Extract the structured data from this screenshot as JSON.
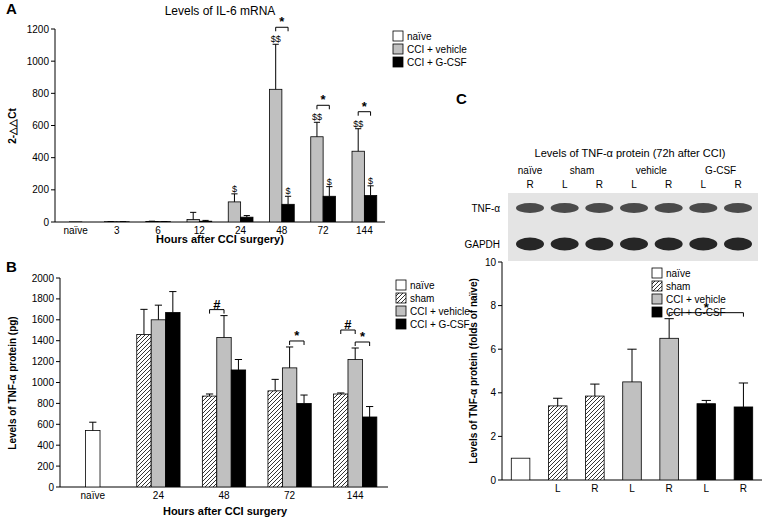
{
  "chart_data": [
    {
      "panel": "A",
      "type": "bar",
      "title": "Levels  of IL-6 mRNA",
      "x_label": "Hours after CCI surgery)",
      "y_label": "2-△△Ct",
      "categories": [
        "naïve",
        "3",
        "6",
        "12",
        "24",
        "48",
        "72",
        "144"
      ],
      "series": [
        {
          "name": "naïve",
          "color": "#ffffff",
          "values": [
            1,
            null,
            null,
            null,
            null,
            null,
            null,
            null
          ],
          "errors": [
            null,
            null,
            null,
            null,
            null,
            null,
            null,
            null
          ]
        },
        {
          "name": "CCI + vehicle",
          "color": "#c0c0c0",
          "values": [
            null,
            2,
            3,
            15,
            125,
            825,
            530,
            440
          ],
          "errors": [
            null,
            1,
            2,
            45,
            50,
            280,
            90,
            140
          ],
          "notes": [
            null,
            null,
            null,
            null,
            "$",
            "$$",
            "$$",
            "$$"
          ]
        },
        {
          "name": "CCI + G-CSF",
          "color": "#000000",
          "values": [
            null,
            1,
            2,
            5,
            30,
            110,
            160,
            165
          ],
          "errors": [
            null,
            1,
            1,
            5,
            10,
            50,
            60,
            60
          ],
          "notes": [
            null,
            null,
            null,
            null,
            null,
            "$",
            "$",
            "$"
          ]
        }
      ],
      "ylim": [
        0,
        1200
      ],
      "yticks": [
        0,
        200,
        400,
        600,
        800,
        1000,
        1200
      ],
      "grid": false,
      "legend": "right",
      "annotations": [
        {
          "text": "*",
          "from": [
            5,
            1
          ],
          "to": [
            5,
            2
          ]
        },
        {
          "text": "*",
          "from": [
            6,
            1
          ],
          "to": [
            6,
            2
          ]
        },
        {
          "text": "*",
          "from": [
            7,
            1
          ],
          "to": [
            7,
            2
          ]
        }
      ]
    },
    {
      "panel": "B",
      "type": "bar",
      "x_label": "Hours after CCI surgery",
      "y_label": "Levels of TNF-α protein (pg)",
      "categories": [
        "naïve",
        "24",
        "48",
        "72",
        "144"
      ],
      "series": [
        {
          "name": "naïve",
          "color": "#ffffff",
          "values": [
            540,
            null,
            null,
            null,
            null
          ],
          "errors": [
            80,
            null,
            null,
            null,
            null
          ]
        },
        {
          "name": "sham",
          "color": "#ffffff",
          "line_style": "hatched",
          "values": [
            null,
            1460,
            870,
            920,
            890
          ],
          "errors": [
            null,
            240,
            20,
            110,
            10
          ]
        },
        {
          "name": "CCI + vehicle",
          "color": "#c0c0c0",
          "values": [
            null,
            1600,
            1430,
            1140,
            1220
          ],
          "errors": [
            null,
            140,
            210,
            200,
            110
          ]
        },
        {
          "name": "CCI + G-CSF",
          "color": "#000000",
          "values": [
            null,
            1670,
            1120,
            800,
            670
          ],
          "errors": [
            null,
            200,
            100,
            80,
            100
          ]
        }
      ],
      "ylim": [
        0,
        2000
      ],
      "yticks": [
        0,
        200,
        400,
        600,
        800,
        1000,
        1200,
        1400,
        1600,
        1800,
        2000
      ],
      "grid": false,
      "legend": "right",
      "annotations": [
        {
          "text": "#",
          "from": [
            2,
            1
          ],
          "to": [
            2,
            2
          ]
        },
        {
          "text": "*",
          "from": [
            3,
            2
          ],
          "to": [
            3,
            3
          ]
        },
        {
          "text": "*",
          "from": [
            4,
            2
          ],
          "to": [
            4,
            3
          ]
        },
        {
          "text": "#",
          "from": [
            4,
            1
          ],
          "to": [
            4,
            2
          ]
        }
      ]
    },
    {
      "panel": "C",
      "type": "bar",
      "y_label": "Levels of TNF-α protein (folds of naïve)",
      "categories": [
        null,
        "L",
        "R",
        "L",
        "R",
        "L",
        "R"
      ],
      "series": [
        {
          "name": "naïve",
          "color": "#ffffff",
          "values": [
            1,
            null,
            null,
            null,
            null,
            null,
            null
          ],
          "errors": [
            null,
            null,
            null,
            null,
            null,
            null,
            null
          ]
        },
        {
          "name": "sham",
          "color": "#ffffff",
          "line_style": "hatched",
          "values": [
            null,
            3.4,
            3.85,
            null,
            null,
            null,
            null
          ],
          "errors": [
            null,
            0.35,
            0.55,
            null,
            null,
            null,
            null
          ]
        },
        {
          "name": "CCI + vehicle",
          "color": "#c0c0c0",
          "values": [
            null,
            null,
            null,
            4.5,
            6.5,
            null,
            null
          ],
          "errors": [
            null,
            null,
            null,
            1.5,
            0.9,
            null,
            null
          ]
        },
        {
          "name": "CCI + G-CSF",
          "color": "#000000",
          "values": [
            null,
            null,
            null,
            null,
            null,
            3.5,
            3.35
          ],
          "errors": [
            null,
            null,
            null,
            null,
            null,
            0.15,
            1.1
          ]
        }
      ],
      "ylim": [
        0,
        10
      ],
      "yticks": [
        0,
        2,
        4,
        6,
        8,
        10
      ],
      "grid": false,
      "legend": "top-right",
      "annotations": [
        {
          "text": "*",
          "from": [
            4,
            2
          ],
          "to": [
            6,
            3
          ]
        }
      ]
    }
  ],
  "blot": {
    "title": "Levels of TNF-α protein (72h after CCI)",
    "groups": [
      {
        "name": "naïve",
        "lanes": [
          "R"
        ]
      },
      {
        "name": "sham",
        "lanes": [
          "L",
          "R"
        ]
      },
      {
        "name": "vehicle",
        "lanes": [
          "L",
          "R"
        ]
      },
      {
        "name": "G-CSF",
        "lanes": [
          "L",
          "R"
        ]
      }
    ],
    "rows": [
      "TNF-α",
      "GAPDH"
    ]
  }
}
